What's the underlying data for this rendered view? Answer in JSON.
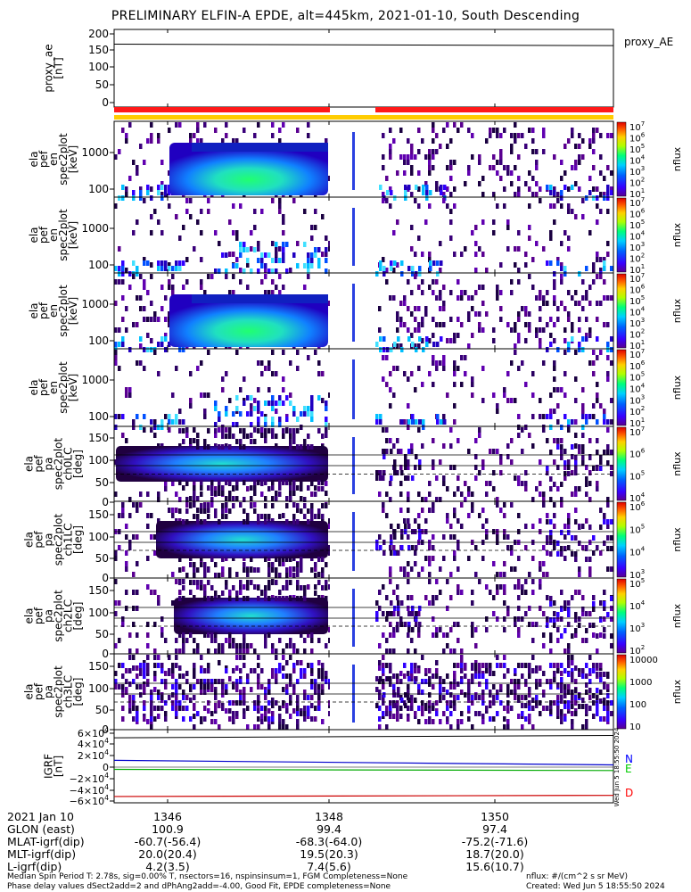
{
  "title": "PRELIMINARY ELFIN-A EPDE, alt=445km, 2021-01-10, South Descending",
  "colors": {
    "red_bar": "#ff1a1a",
    "yellow_bar": "#ffcc00",
    "bx": "#0000cc",
    "by": "#00aa00",
    "bz": "#cc0000",
    "tag_n": "#0000ff",
    "tag_e": "#00cc00",
    "tag_d": "#ff0000"
  },
  "chart_data": {
    "type": "heatmap",
    "x_ticks": [
      "1346",
      "1348",
      "1350"
    ],
    "panels": [
      {
        "id": "proxy_ae",
        "ylabel": [
          "proxy_ae",
          "[nT]"
        ],
        "yticks": [
          "200",
          "150",
          "100",
          "50",
          "0"
        ],
        "legend": "proxy_AE",
        "values": [
          170,
          166
        ]
      },
      {
        "id": "en-para",
        "ylabel": [
          "ela",
          "pef",
          "en",
          "spec2plot",
          "[keV]"
        ],
        "yticks": [
          "1000",
          "100"
        ],
        "cbar_label": "nflux",
        "cbar_ticks": [
          "10^7",
          "10^6",
          "10^5",
          "10^4",
          "10^3",
          "10^2",
          "10^1"
        ]
      },
      {
        "id": "en-perp",
        "ylabel": [
          "ela",
          "pef",
          "en",
          "spec2plot",
          "[keV]"
        ],
        "yticks": [
          "1000",
          "100"
        ],
        "cbar_label": "nflux",
        "cbar_ticks": [
          "10^7",
          "10^6",
          "10^5",
          "10^4",
          "10^3",
          "10^2",
          "10^1"
        ]
      },
      {
        "id": "en-omni",
        "ylabel": [
          "ela",
          "pef",
          "en",
          "spec2plot",
          "[keV]"
        ],
        "yticks": [
          "1000",
          "100"
        ],
        "cbar_label": "nflux",
        "cbar_ticks": [
          "10^7",
          "10^6",
          "10^5",
          "10^4",
          "10^3",
          "10^2",
          "10^1"
        ]
      },
      {
        "id": "en-anti",
        "ylabel": [
          "ela",
          "pef",
          "en",
          "spec2plot",
          "[keV]"
        ],
        "yticks": [
          "1000",
          "100"
        ],
        "cbar_label": "nflux",
        "cbar_ticks": [
          "10^7",
          "10^6",
          "10^5",
          "10^4",
          "10^3",
          "10^2",
          "10^1"
        ]
      },
      {
        "id": "ch0LC",
        "ylabel": [
          "ela",
          "pef",
          "pa",
          "spec2plot",
          "ch0LC",
          "[deg]"
        ],
        "yticks": [
          "150",
          "100",
          "50",
          "0"
        ],
        "cbar_label": "nflux",
        "cbar_ticks": [
          "10^7",
          "10^6",
          "10^5",
          "10^4"
        ]
      },
      {
        "id": "ch1LC",
        "ylabel": [
          "ela",
          "pef",
          "pa",
          "spec2plot",
          "ch1LC",
          "[deg]"
        ],
        "yticks": [
          "150",
          "100",
          "50",
          "0"
        ],
        "cbar_label": "nflux",
        "cbar_ticks": [
          "10^6",
          "10^5",
          "10^4",
          "10^3"
        ]
      },
      {
        "id": "ch2LC",
        "ylabel": [
          "ela",
          "pef",
          "pa",
          "spec2plot",
          "ch2LC",
          "[deg]"
        ],
        "yticks": [
          "150",
          "100",
          "50",
          "0"
        ],
        "cbar_label": "nflux",
        "cbar_ticks": [
          "10^5",
          "10^4",
          "10^3",
          "10^2"
        ]
      },
      {
        "id": "ch3LC",
        "ylabel": [
          "ela",
          "pef",
          "pa",
          "spec2plot",
          "ch3LC",
          "[deg]"
        ],
        "yticks": [
          "150",
          "100",
          "50",
          "0"
        ],
        "cbar_label": "nflux",
        "cbar_ticks": [
          "10000",
          "1000",
          "100",
          "10"
        ]
      },
      {
        "id": "igrf",
        "ylabel": [
          "IGRF",
          "[nT]"
        ],
        "yticks": [
          "6×10^4",
          "4×10^4",
          "2×10^4",
          "0",
          "−2×10^4",
          "−4×10^4",
          "−6×10^4"
        ],
        "tags": [
          "N",
          "E",
          "D"
        ],
        "side_note": "Wed Jun 5 18:55:50 2024"
      }
    ],
    "time_table": {
      "header": "2021 Jan 10",
      "times": [
        "1346",
        "1348",
        "1350"
      ],
      "rows": [
        {
          "label": "GLON (east)",
          "values": [
            "100.9",
            "99.4",
            "97.4"
          ]
        },
        {
          "label": "MLAT-igrf(dip)",
          "values": [
            "-60.7(-56.4)",
            "-68.3(-64.0)",
            "-75.2(-71.6)"
          ]
        },
        {
          "label": "MLT-igrf(dip)",
          "values": [
            "20.0(20.4)",
            "19.5(20.3)",
            "18.7(20.0)"
          ]
        },
        {
          "label": "L-igrf(dip)",
          "values": [
            "4.2(3.5)",
            "7.4(5.6)",
            "15.6(10.7)"
          ]
        }
      ]
    }
  },
  "footer": {
    "left1": "Median Spin Period T: 2.78s, sig=0.00% T, nsectors=16, nspinsinsum=1, FGM Completeness=None",
    "left2": "Phase delay values dSect2add=2 and dPhAng2add=-4.00, Good Fit, EPDE completeness=None",
    "right1": "nflux: #/(cm^2 s sr MeV)",
    "right2": "Created: Wed Jun  5 18:55:50 2024"
  }
}
